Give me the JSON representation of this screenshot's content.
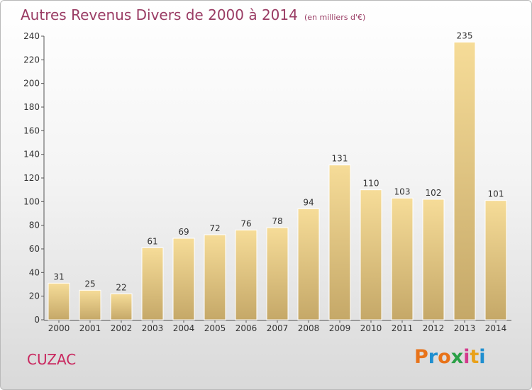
{
  "header": {
    "title": "Autres Revenus Divers de 2000 à 2014",
    "unit": "(en milliers d'€)"
  },
  "footer": {
    "commune": "CUZAC",
    "logo_text": "Proxiti",
    "logo_colors": [
      "#e8731a",
      "#1f8fd0",
      "#e8731a",
      "#2aa046",
      "#d43a8c",
      "#e9a11a",
      "#1f8fd0"
    ]
  },
  "chart_data": {
    "type": "bar",
    "categories": [
      "2000",
      "2001",
      "2002",
      "2003",
      "2004",
      "2005",
      "2006",
      "2007",
      "2008",
      "2009",
      "2010",
      "2011",
      "2012",
      "2013",
      "2014"
    ],
    "values": [
      31,
      25,
      22,
      61,
      69,
      72,
      76,
      78,
      94,
      131,
      110,
      103,
      102,
      235,
      101
    ],
    "data_labels": [
      "31",
      "25",
      "22",
      "61",
      "69",
      "72",
      "76",
      "78",
      "94",
      "131",
      "110",
      "103",
      "102",
      "235",
      "101"
    ],
    "yticks": [
      0,
      20,
      40,
      60,
      80,
      100,
      120,
      140,
      160,
      180,
      200,
      220,
      240
    ],
    "ylim": [
      0,
      240
    ],
    "grid": false,
    "bar_color_top": "#f6dc98",
    "bar_color_bottom": "#c5a868",
    "title": "Autres Revenus Divers de 2000 à 2014",
    "xlabel": "",
    "ylabel": ""
  }
}
